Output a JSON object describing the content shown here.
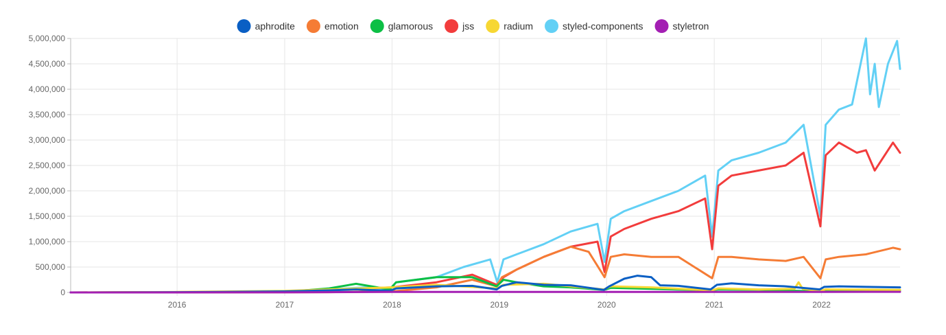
{
  "chart_data": {
    "type": "line",
    "title": "",
    "xlabel": "",
    "ylabel": "",
    "legend_position": "top-center",
    "grid": true,
    "xlim": [
      "2015-01-04",
      "2022-09-25"
    ],
    "ylim": [
      0,
      5000000
    ],
    "y_ticks": [
      0,
      500000,
      1000000,
      1500000,
      2000000,
      2500000,
      3000000,
      3500000,
      4000000,
      4500000,
      5000000
    ],
    "y_tick_labels": [
      "0",
      "500,000",
      "1,000,000",
      "1,500,000",
      "2,000,000",
      "2,500,000",
      "3,000,000",
      "3,500,000",
      "4,000,000",
      "4,500,000",
      "5,000,000"
    ],
    "x_ticks": [
      "2016-01-01",
      "2017-01-01",
      "2018-01-01",
      "2019-01-01",
      "2020-01-01",
      "2021-01-01",
      "2022-01-01"
    ],
    "x_tick_labels": [
      "2016",
      "2017",
      "2018",
      "2019",
      "2020",
      "2021",
      "2022"
    ],
    "series": [
      {
        "name": "aphrodite",
        "color": "#0a5fc4",
        "points": [
          [
            "2015-01-04",
            0
          ],
          [
            "2015-06-01",
            2000
          ],
          [
            "2016-01-01",
            5000
          ],
          [
            "2016-06-01",
            10000
          ],
          [
            "2017-01-01",
            20000
          ],
          [
            "2017-06-01",
            40000
          ],
          [
            "2017-09-01",
            60000
          ],
          [
            "2017-12-24",
            30000
          ],
          [
            "2018-01-15",
            80000
          ],
          [
            "2018-06-01",
            120000
          ],
          [
            "2018-10-01",
            130000
          ],
          [
            "2018-12-23",
            60000
          ],
          [
            "2019-01-10",
            130000
          ],
          [
            "2019-03-01",
            200000
          ],
          [
            "2019-06-01",
            150000
          ],
          [
            "2019-09-01",
            140000
          ],
          [
            "2019-12-23",
            50000
          ],
          [
            "2020-01-10",
            120000
          ],
          [
            "2020-03-01",
            270000
          ],
          [
            "2020-04-15",
            330000
          ],
          [
            "2020-06-01",
            300000
          ],
          [
            "2020-07-01",
            140000
          ],
          [
            "2020-09-01",
            130000
          ],
          [
            "2020-12-20",
            60000
          ],
          [
            "2021-01-10",
            150000
          ],
          [
            "2021-03-01",
            180000
          ],
          [
            "2021-06-01",
            140000
          ],
          [
            "2021-09-01",
            120000
          ],
          [
            "2021-12-26",
            60000
          ],
          [
            "2022-01-10",
            110000
          ],
          [
            "2022-03-01",
            120000
          ],
          [
            "2022-06-01",
            110000
          ],
          [
            "2022-09-25",
            100000
          ]
        ]
      },
      {
        "name": "emotion",
        "color": "#f57c35",
        "points": [
          [
            "2015-01-04",
            0
          ],
          [
            "2017-06-01",
            5000
          ],
          [
            "2018-01-01",
            20000
          ],
          [
            "2018-06-01",
            100000
          ],
          [
            "2018-10-01",
            250000
          ],
          [
            "2018-12-23",
            120000
          ],
          [
            "2019-01-10",
            300000
          ],
          [
            "2019-03-01",
            450000
          ],
          [
            "2019-06-01",
            700000
          ],
          [
            "2019-09-01",
            900000
          ],
          [
            "2019-11-01",
            800000
          ],
          [
            "2019-12-25",
            300000
          ],
          [
            "2020-01-15",
            700000
          ],
          [
            "2020-03-01",
            750000
          ],
          [
            "2020-06-01",
            700000
          ],
          [
            "2020-09-01",
            700000
          ],
          [
            "2020-12-25",
            280000
          ],
          [
            "2021-01-15",
            700000
          ],
          [
            "2021-03-01",
            700000
          ],
          [
            "2021-06-01",
            650000
          ],
          [
            "2021-09-01",
            620000
          ],
          [
            "2021-11-01",
            700000
          ],
          [
            "2021-12-28",
            280000
          ],
          [
            "2022-01-15",
            650000
          ],
          [
            "2022-03-01",
            700000
          ],
          [
            "2022-06-01",
            750000
          ],
          [
            "2022-09-01",
            880000
          ],
          [
            "2022-09-25",
            850000
          ]
        ]
      },
      {
        "name": "glamorous",
        "color": "#0cbf45",
        "points": [
          [
            "2015-01-04",
            0
          ],
          [
            "2017-01-01",
            10000
          ],
          [
            "2017-06-01",
            80000
          ],
          [
            "2017-09-01",
            170000
          ],
          [
            "2017-12-24",
            60000
          ],
          [
            "2018-01-15",
            200000
          ],
          [
            "2018-06-01",
            300000
          ],
          [
            "2018-10-01",
            300000
          ],
          [
            "2018-12-23",
            120000
          ],
          [
            "2019-01-15",
            250000
          ],
          [
            "2019-03-01",
            200000
          ],
          [
            "2019-06-01",
            120000
          ],
          [
            "2019-09-01",
            100000
          ],
          [
            "2019-12-23",
            50000
          ],
          [
            "2020-01-15",
            90000
          ],
          [
            "2020-06-01",
            70000
          ],
          [
            "2020-12-25",
            40000
          ],
          [
            "2021-01-15",
            60000
          ],
          [
            "2021-06-01",
            50000
          ],
          [
            "2021-12-28",
            20000
          ],
          [
            "2022-01-15",
            40000
          ],
          [
            "2022-09-25",
            40000
          ]
        ]
      },
      {
        "name": "jss",
        "color": "#f23c3c",
        "points": [
          [
            "2015-01-04",
            0
          ],
          [
            "2016-01-01",
            5000
          ],
          [
            "2017-01-01",
            20000
          ],
          [
            "2017-06-01",
            50000
          ],
          [
            "2018-01-01",
            100000
          ],
          [
            "2018-06-01",
            200000
          ],
          [
            "2018-10-01",
            350000
          ],
          [
            "2018-12-23",
            150000
          ],
          [
            "2019-01-15",
            300000
          ],
          [
            "2019-03-01",
            450000
          ],
          [
            "2019-06-01",
            700000
          ],
          [
            "2019-09-01",
            900000
          ],
          [
            "2019-12-01",
            1000000
          ],
          [
            "2019-12-25",
            400000
          ],
          [
            "2020-01-15",
            1100000
          ],
          [
            "2020-03-01",
            1250000
          ],
          [
            "2020-06-01",
            1450000
          ],
          [
            "2020-09-01",
            1600000
          ],
          [
            "2020-12-01",
            1850000
          ],
          [
            "2020-12-25",
            850000
          ],
          [
            "2021-01-15",
            2100000
          ],
          [
            "2021-03-01",
            2300000
          ],
          [
            "2021-06-01",
            2400000
          ],
          [
            "2021-09-01",
            2500000
          ],
          [
            "2021-11-01",
            2750000
          ],
          [
            "2021-12-28",
            1300000
          ],
          [
            "2022-01-15",
            2700000
          ],
          [
            "2022-03-01",
            2950000
          ],
          [
            "2022-05-01",
            2750000
          ],
          [
            "2022-06-01",
            2800000
          ],
          [
            "2022-07-01",
            2400000
          ],
          [
            "2022-09-01",
            2950000
          ],
          [
            "2022-09-25",
            2750000
          ]
        ]
      },
      {
        "name": "radium",
        "color": "#f7d733",
        "points": [
          [
            "2015-01-04",
            0
          ],
          [
            "2016-01-01",
            10000
          ],
          [
            "2017-01-01",
            30000
          ],
          [
            "2017-06-01",
            60000
          ],
          [
            "2018-01-01",
            100000
          ],
          [
            "2018-06-01",
            150000
          ],
          [
            "2018-12-23",
            80000
          ],
          [
            "2019-01-15",
            150000
          ],
          [
            "2019-06-01",
            170000
          ],
          [
            "2019-12-23",
            60000
          ],
          [
            "2020-01-15",
            120000
          ],
          [
            "2020-06-01",
            100000
          ],
          [
            "2020-12-25",
            40000
          ],
          [
            "2021-01-15",
            80000
          ],
          [
            "2021-06-01",
            60000
          ],
          [
            "2021-10-01",
            70000
          ],
          [
            "2021-10-15",
            200000
          ],
          [
            "2021-10-29",
            70000
          ],
          [
            "2021-12-28",
            30000
          ],
          [
            "2022-01-15",
            60000
          ],
          [
            "2022-09-25",
            50000
          ]
        ]
      },
      {
        "name": "styled-components",
        "color": "#62d0f5",
        "points": [
          [
            "2015-01-04",
            0
          ],
          [
            "2016-01-01",
            5000
          ],
          [
            "2016-06-01",
            10000
          ],
          [
            "2017-01-01",
            20000
          ],
          [
            "2017-06-01",
            60000
          ],
          [
            "2017-10-01",
            100000
          ],
          [
            "2017-12-24",
            50000
          ],
          [
            "2018-01-15",
            200000
          ],
          [
            "2018-06-01",
            300000
          ],
          [
            "2018-09-01",
            500000
          ],
          [
            "2018-12-01",
            650000
          ],
          [
            "2018-12-25",
            200000
          ],
          [
            "2019-01-15",
            650000
          ],
          [
            "2019-03-01",
            750000
          ],
          [
            "2019-06-01",
            950000
          ],
          [
            "2019-09-01",
            1200000
          ],
          [
            "2019-12-01",
            1350000
          ],
          [
            "2019-12-25",
            600000
          ],
          [
            "2020-01-15",
            1450000
          ],
          [
            "2020-03-01",
            1600000
          ],
          [
            "2020-06-01",
            1800000
          ],
          [
            "2020-09-01",
            2000000
          ],
          [
            "2020-12-01",
            2300000
          ],
          [
            "2020-12-25",
            1100000
          ],
          [
            "2021-01-15",
            2400000
          ],
          [
            "2021-03-01",
            2600000
          ],
          [
            "2021-06-01",
            2750000
          ],
          [
            "2021-09-01",
            2950000
          ],
          [
            "2021-11-01",
            3300000
          ],
          [
            "2021-12-28",
            1500000
          ],
          [
            "2022-01-15",
            3300000
          ],
          [
            "2022-03-01",
            3600000
          ],
          [
            "2022-04-15",
            3700000
          ],
          [
            "2022-06-01",
            5000000
          ],
          [
            "2022-06-15",
            3900000
          ],
          [
            "2022-07-01",
            4500000
          ],
          [
            "2022-07-15",
            3650000
          ],
          [
            "2022-08-15",
            4500000
          ],
          [
            "2022-09-15",
            4950000
          ],
          [
            "2022-09-25",
            4400000
          ]
        ]
      },
      {
        "name": "styletron",
        "color": "#a31fb3",
        "points": [
          [
            "2015-01-04",
            0
          ],
          [
            "2017-01-01",
            2000
          ],
          [
            "2018-01-01",
            10000
          ],
          [
            "2019-01-01",
            10000
          ],
          [
            "2020-01-01",
            10000
          ],
          [
            "2021-01-01",
            10000
          ],
          [
            "2022-01-01",
            10000
          ],
          [
            "2022-09-25",
            12000
          ]
        ]
      }
    ]
  }
}
